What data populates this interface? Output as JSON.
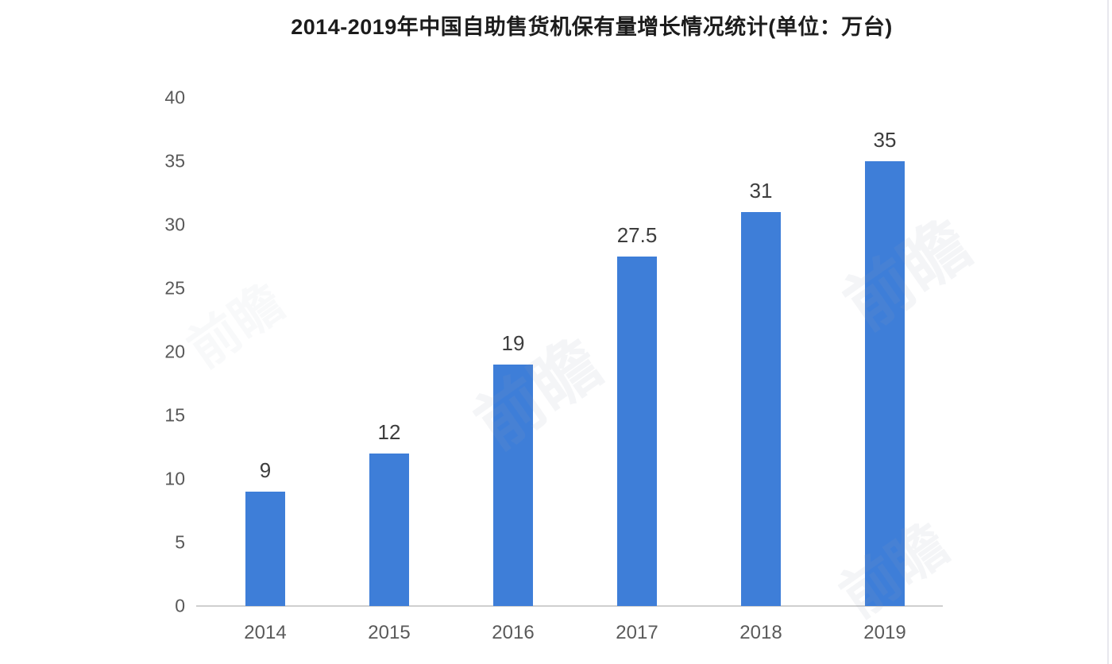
{
  "chart_data": {
    "type": "bar",
    "title": "2014-2019年中国自助售货机保有量增长情况统计(单位：万台)",
    "categories": [
      "2014",
      "2015",
      "2016",
      "2017",
      "2018",
      "2019"
    ],
    "values": [
      9,
      12,
      19,
      27.5,
      31,
      35
    ],
    "value_labels": [
      "9",
      "12",
      "19",
      "27.5",
      "31",
      "35"
    ],
    "yticks": [
      0,
      5,
      10,
      15,
      20,
      25,
      30,
      35,
      40
    ],
    "ylim": [
      0,
      40
    ],
    "xlabel": "",
    "ylabel": "",
    "grid": false,
    "legend": false,
    "bar_color": "#3e7ed8",
    "axis_line_color": "#cfcfcf",
    "tick_label_color": "#595959",
    "value_label_color": "#3d3d3d",
    "title_color": "#1c1c1c",
    "watermark": "前瞻"
  }
}
